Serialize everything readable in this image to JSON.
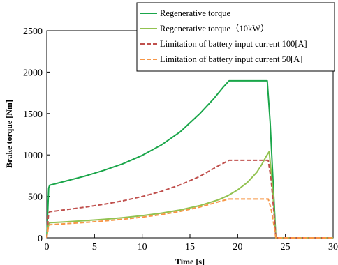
{
  "chart_data": {
    "type": "line",
    "xlabel": "Time [s]",
    "ylabel": "Brake torque [Nm]",
    "xlim": [
      0,
      30
    ],
    "ylim": [
      0,
      2500
    ],
    "xticks": [
      0,
      5,
      10,
      15,
      20,
      25,
      30
    ],
    "yticks": [
      0,
      500,
      1000,
      1500,
      2000,
      2500
    ],
    "grid": false,
    "legend_position": "top-right",
    "series": [
      {
        "name": "Regenerative torque",
        "color": "#1aa64a",
        "dash": "solid",
        "x": [
          0,
          0.2,
          0.3,
          2,
          4,
          6,
          8,
          10,
          12,
          14,
          16,
          17.5,
          18.5,
          19.1,
          21,
          23.1,
          23.4,
          23.7,
          24,
          30
        ],
        "y": [
          0,
          600,
          635,
          685,
          745,
          815,
          895,
          995,
          1120,
          1280,
          1495,
          1680,
          1820,
          1895,
          1895,
          1895,
          1400,
          700,
          0,
          0
        ]
      },
      {
        "name": "Regenerative torque（10kW）",
        "color": "#92c250",
        "dash": "solid",
        "x": [
          0,
          0.2,
          0.3,
          2,
          4,
          6,
          8,
          10,
          12,
          14,
          16,
          18,
          19,
          20,
          21,
          22,
          22.5,
          23,
          23.3,
          23.6,
          24,
          30
        ],
        "y": [
          0,
          170,
          182,
          193,
          207,
          223,
          243,
          268,
          298,
          337,
          388,
          460,
          510,
          578,
          667,
          790,
          880,
          985,
          1040,
          700,
          0,
          0
        ]
      },
      {
        "name": "Limitation of battery input current 100[A]",
        "color": "#c0504d",
        "dash": "dashed",
        "x": [
          0,
          0.2,
          0.3,
          2,
          4,
          6,
          8,
          10,
          12,
          14,
          16,
          18,
          19.1,
          21,
          23.2,
          23.5,
          23.8,
          24,
          30
        ],
        "y": [
          0,
          300,
          315,
          340,
          370,
          405,
          447,
          498,
          560,
          640,
          740,
          870,
          935,
          935,
          935,
          700,
          300,
          0,
          0
        ]
      },
      {
        "name": "Limitation of battery input current 50[A]",
        "color": "#f79646",
        "dash": "dashed",
        "x": [
          0,
          0.2,
          0.3,
          2,
          4,
          6,
          8,
          10,
          12,
          14,
          16,
          18,
          19.1,
          21,
          23.2,
          23.5,
          23.8,
          24,
          30
        ],
        "y": [
          0,
          150,
          158,
          170,
          185,
          203,
          224,
          249,
          280,
          320,
          370,
          435,
          468,
          468,
          468,
          350,
          150,
          0,
          0
        ]
      }
    ]
  }
}
